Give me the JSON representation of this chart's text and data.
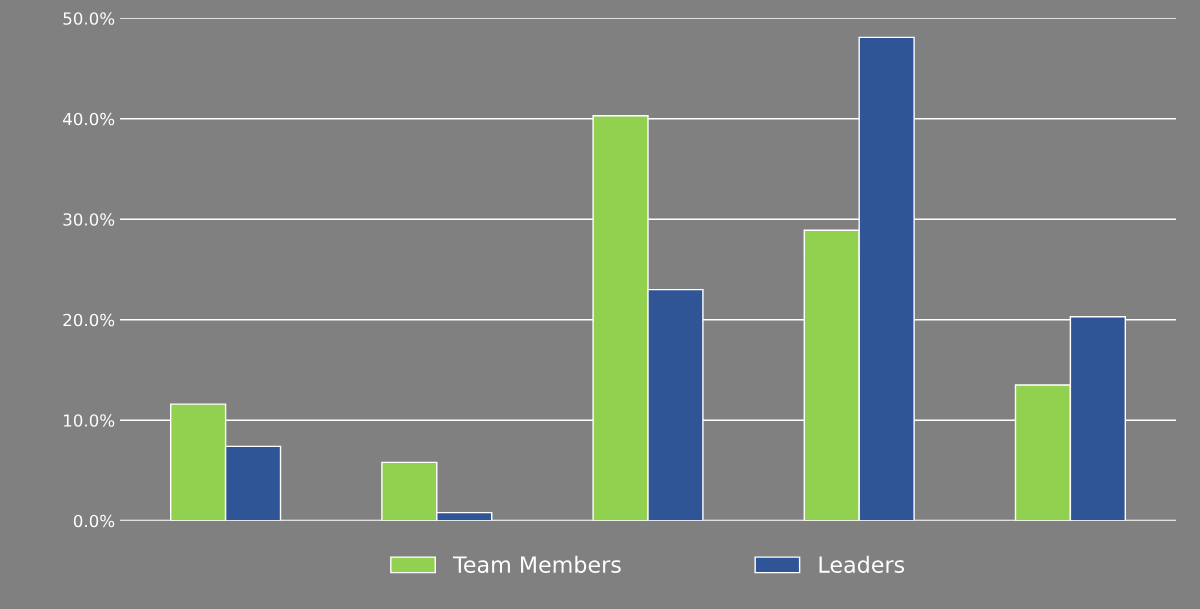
{
  "chart_data": {
    "type": "bar",
    "categories": [
      null,
      null,
      null,
      null,
      null
    ],
    "series": [
      {
        "name": "Team Members",
        "color": "#92d050",
        "values": [
          11.6,
          5.8,
          40.3,
          28.9,
          13.5
        ]
      },
      {
        "name": "Leaders",
        "color": "#2f5597",
        "values": [
          7.4,
          0.8,
          23.0,
          48.1,
          20.3
        ]
      }
    ],
    "ylim": [
      0,
      50
    ],
    "yticks": [
      {
        "value": 0,
        "label": "0.0%"
      },
      {
        "value": 10,
        "label": "10.0%"
      },
      {
        "value": 20,
        "label": "20.0%"
      },
      {
        "value": 30,
        "label": "30.0%"
      },
      {
        "value": 40,
        "label": "40.0%"
      },
      {
        "value": 50,
        "label": "50.0%"
      }
    ],
    "grid": "y",
    "legend": "bottom"
  }
}
